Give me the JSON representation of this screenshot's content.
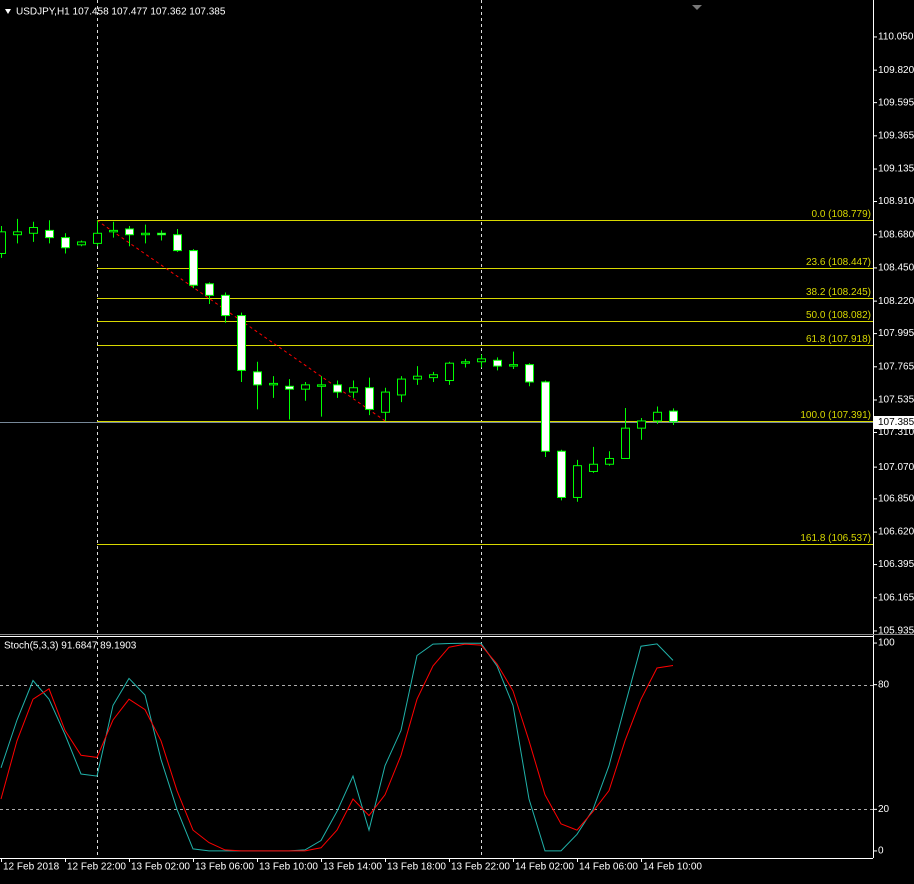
{
  "chart_data": [
    {
      "type": "candlestick",
      "title": "USDJPY,H1  107.458 107.477 107.362 107.385",
      "categories": [
        "12 Feb 2018",
        null,
        null,
        null,
        "12 Feb 22:00",
        null,
        null,
        null,
        "13 Feb 02:00",
        null,
        null,
        null,
        "13 Feb 06:00",
        null,
        null,
        null,
        "13 Feb 10:00",
        null,
        null,
        null,
        "13 Feb 14:00",
        null,
        null,
        null,
        "13 Feb 18:00",
        null,
        null,
        null,
        "13 Feb 22:00",
        null,
        null,
        null,
        "14 Feb 02:00",
        null,
        null,
        null,
        "14 Feb 06:00",
        null,
        null,
        null,
        "14 Feb 10:00",
        null,
        null
      ],
      "open": [
        108.55,
        108.68,
        108.69,
        108.71,
        108.66,
        108.61,
        108.62,
        108.7,
        108.72,
        108.68,
        108.69,
        108.68,
        108.57,
        108.34,
        108.26,
        108.12,
        107.73,
        107.64,
        107.63,
        107.61,
        107.63,
        107.64,
        107.59,
        107.62,
        107.45,
        107.57,
        107.68,
        107.69,
        107.67,
        107.79,
        107.8,
        107.81,
        107.77,
        107.78,
        107.66,
        107.18,
        106.86,
        107.04,
        107.09,
        107.13,
        107.34,
        107.39,
        107.458
      ],
      "high": [
        108.74,
        108.79,
        108.77,
        108.78,
        108.69,
        108.64,
        108.779,
        108.77,
        108.74,
        108.75,
        108.71,
        108.72,
        108.58,
        108.35,
        108.28,
        108.14,
        107.8,
        107.7,
        107.68,
        107.66,
        107.7,
        107.67,
        107.67,
        107.69,
        107.62,
        107.7,
        107.77,
        107.73,
        107.8,
        107.82,
        107.85,
        107.83,
        107.87,
        107.79,
        107.67,
        107.19,
        107.12,
        107.21,
        107.18,
        107.48,
        107.41,
        107.49,
        107.477
      ],
      "low": [
        108.52,
        108.62,
        108.63,
        108.62,
        108.55,
        108.6,
        108.6,
        108.66,
        108.6,
        108.62,
        108.64,
        108.56,
        108.31,
        108.2,
        108.07,
        107.66,
        107.47,
        107.55,
        107.4,
        107.53,
        107.42,
        107.55,
        107.55,
        107.43,
        107.391,
        107.52,
        107.64,
        107.66,
        107.64,
        107.76,
        107.76,
        107.74,
        107.75,
        107.63,
        107.14,
        106.84,
        106.83,
        107.03,
        107.08,
        107.13,
        107.26,
        107.37,
        107.362
      ],
      "close": [
        108.7,
        108.7,
        108.73,
        108.66,
        108.59,
        108.63,
        108.69,
        108.71,
        108.68,
        108.69,
        108.68,
        108.57,
        108.33,
        108.26,
        108.12,
        107.74,
        107.64,
        107.65,
        107.61,
        107.64,
        107.64,
        107.59,
        107.62,
        107.47,
        107.59,
        107.68,
        107.7,
        107.71,
        107.79,
        107.8,
        107.82,
        107.77,
        107.78,
        107.66,
        107.18,
        106.86,
        107.08,
        107.09,
        107.13,
        107.34,
        107.39,
        107.45,
        107.385
      ],
      "up_color": "#000000",
      "down_color": "#ffffff",
      "edge_color": "#00ff00",
      "ylim": [
        105.914,
        110.306
      ],
      "yticks": [
        {
          "value": 110.05,
          "label": "110.050"
        },
        {
          "value": 109.82,
          "label": "109.820"
        },
        109.595,
        109.365,
        109.135,
        {
          "value": 108.91,
          "label": "108.910"
        },
        {
          "value": 108.68,
          "label": "108.680"
        },
        {
          "value": 108.45,
          "label": "108.450"
        },
        {
          "value": 108.22,
          "label": "108.220"
        },
        107.995,
        107.765,
        107.535,
        {
          "value": 107.31,
          "label": "107.310"
        },
        {
          "value": 107.07,
          "label": "107.070"
        },
        {
          "value": 106.85,
          "label": "106.850"
        },
        {
          "value": 106.62,
          "label": "106.620"
        },
        106.395,
        106.165,
        105.935
      ],
      "current_price": 107.385,
      "current_price_color": "#778899",
      "fib_color": "#d8d800",
      "trend_color": "#ff0000",
      "fib_levels": [
        {
          "label": "0.0 (108.779)",
          "value": 108.779
        },
        {
          "label": "23.6 (108.447)",
          "value": 108.447
        },
        {
          "label": "38.2 (108.245)",
          "value": 108.245
        },
        {
          "label": "50.0 (108.082)",
          "value": 108.082
        },
        {
          "label": "61.8 (107.918)",
          "value": 107.918
        },
        {
          "label": "100.0 (107.391)",
          "value": 107.391
        },
        {
          "label": "161.8 (106.537)",
          "value": 106.537
        }
      ]
    },
    {
      "type": "line",
      "title": "Stoch(5,3,3) 91.6847 89.1903",
      "series": [
        {
          "color": "#20b2aa",
          "values": [
            40,
            63,
            82,
            73,
            56,
            37,
            36,
            70,
            83,
            75,
            44,
            20,
            1,
            0,
            0,
            0,
            0,
            0,
            0,
            0.5,
            5,
            19,
            36,
            10,
            41,
            58,
            94,
            99.5,
            99.8,
            99.9,
            99.9,
            89,
            70,
            25,
            0,
            0,
            8,
            20,
            41,
            70,
            98.5,
            99.6,
            91.6847
          ]
        },
        {
          "color": "#ff0000",
          "values": [
            25,
            53,
            73,
            78,
            58,
            46,
            45,
            63,
            73,
            68,
            53,
            29,
            10,
            4,
            0.5,
            0,
            0,
            0,
            0,
            0,
            1.5,
            10,
            25,
            17,
            27,
            46,
            73,
            89,
            98,
            99.5,
            99,
            90,
            77,
            53,
            27,
            13,
            10,
            19,
            29,
            53,
            73,
            88,
            89.1903
          ]
        }
      ],
      "ylim": [
        -3.4,
        103.4
      ],
      "yticks": [
        100,
        80,
        20,
        0
      ],
      "levels": [
        80,
        20
      ]
    }
  ]
}
